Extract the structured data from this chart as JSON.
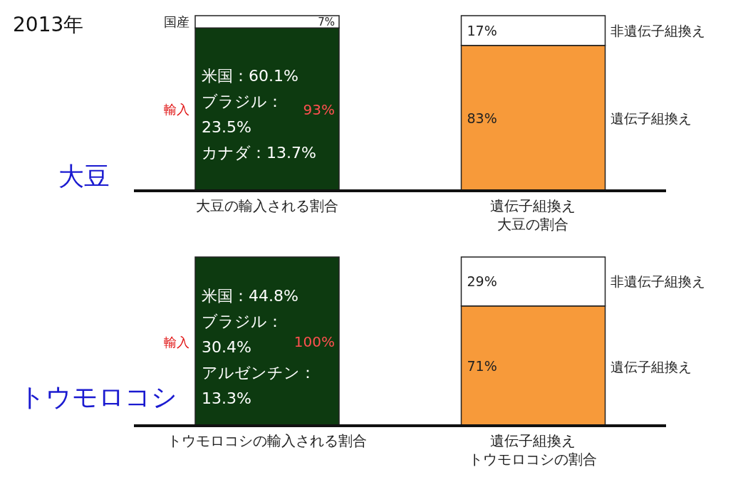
{
  "chart_data": [
    {
      "type": "bar",
      "stacked": true,
      "title": "2013年",
      "categories": [
        "大豆の輸入される割合",
        "遺伝子組換え大豆の割合"
      ],
      "series": [
        {
          "color": "#0d3a10",
          "values": [
            93,
            null
          ],
          "value_labels": [
            "93%",
            null
          ]
        },
        {
          "color": "#f79a3a",
          "values": [
            null,
            83
          ],
          "value_labels": [
            null,
            "83%"
          ]
        },
        {
          "color": "#ffffff",
          "values": [
            7,
            17
          ],
          "value_labels": [
            "7%",
            "17%"
          ]
        }
      ],
      "annotations": [
        "大豆",
        "国産",
        "輸入",
        "米国：60.1%\nブラジル：\n23.5%\nカナダ：13.7%",
        "非遺伝子組換え",
        "遺伝子組換え"
      ],
      "legend": false
    },
    {
      "type": "bar",
      "stacked": true,
      "categories": [
        "トウモロコシの輸入される割合",
        "遺伝子組換えトウモロコシの割合"
      ],
      "series": [
        {
          "color": "#0d3a10",
          "values": [
            100,
            null
          ],
          "value_labels": [
            "100%",
            null
          ]
        },
        {
          "color": "#f79a3a",
          "values": [
            null,
            71
          ],
          "value_labels": [
            null,
            "71%"
          ]
        },
        {
          "color": "#ffffff",
          "values": [
            null,
            29
          ],
          "value_labels": [
            null,
            "29%"
          ]
        }
      ],
      "annotations": [
        "トウモロコシ",
        "輸入",
        "米国：44.8%\nブラジル：\n30.4%\nアルゼンチン：\n13.3%",
        "非遺伝子組換え",
        "遺伝子組換え"
      ],
      "legend": false
    }
  ]
}
